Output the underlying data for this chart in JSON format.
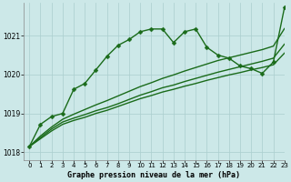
{
  "title": "Graphe pression niveau de la mer (hPa)",
  "background_color": "#cce8e8",
  "grid_color": "#aacece",
  "line_color": "#1a6b1a",
  "xlim": [
    -0.5,
    23
  ],
  "ylim": [
    1017.8,
    1021.85
  ],
  "yticks": [
    1018,
    1019,
    1020,
    1021
  ],
  "xticks": [
    0,
    1,
    2,
    3,
    4,
    5,
    6,
    7,
    8,
    9,
    10,
    11,
    12,
    13,
    14,
    15,
    16,
    17,
    18,
    19,
    20,
    21,
    22,
    23
  ],
  "series": [
    {
      "x": [
        0,
        1,
        2,
        3,
        4,
        5,
        6,
        7,
        8,
        9,
        10,
        11,
        12,
        13,
        14,
        15,
        16,
        17,
        18,
        19,
        20,
        21,
        22,
        23
      ],
      "y": [
        1018.15,
        1018.35,
        1018.55,
        1018.72,
        1018.82,
        1018.9,
        1019.0,
        1019.08,
        1019.18,
        1019.28,
        1019.38,
        1019.46,
        1019.55,
        1019.62,
        1019.7,
        1019.77,
        1019.85,
        1019.92,
        1019.99,
        1020.05,
        1020.12,
        1020.18,
        1020.25,
        1020.55
      ],
      "marker": null,
      "linestyle": "-",
      "linewidth": 1.0
    },
    {
      "x": [
        0,
        1,
        2,
        3,
        4,
        5,
        6,
        7,
        8,
        9,
        10,
        11,
        12,
        13,
        14,
        15,
        16,
        17,
        18,
        19,
        20,
        21,
        22,
        23
      ],
      "y": [
        1018.15,
        1018.38,
        1018.6,
        1018.78,
        1018.88,
        1018.97,
        1019.07,
        1019.15,
        1019.25,
        1019.36,
        1019.47,
        1019.56,
        1019.66,
        1019.73,
        1019.82,
        1019.9,
        1019.98,
        1020.06,
        1020.13,
        1020.2,
        1020.27,
        1020.34,
        1020.42,
        1020.78
      ],
      "marker": null,
      "linestyle": "-",
      "linewidth": 1.0
    },
    {
      "x": [
        0,
        1,
        2,
        3,
        4,
        5,
        6,
        7,
        8,
        9,
        10,
        11,
        12,
        13,
        14,
        15,
        16,
        17,
        18,
        19,
        20,
        21,
        22,
        23
      ],
      "y": [
        1018.15,
        1018.42,
        1018.65,
        1018.85,
        1018.98,
        1019.1,
        1019.22,
        1019.33,
        1019.45,
        1019.57,
        1019.69,
        1019.79,
        1019.9,
        1019.99,
        1020.09,
        1020.18,
        1020.27,
        1020.36,
        1020.43,
        1020.5,
        1020.57,
        1020.64,
        1020.73,
        1021.18
      ],
      "marker": null,
      "linestyle": "-",
      "linewidth": 1.0
    },
    {
      "x": [
        0,
        1,
        2,
        3,
        4,
        5,
        6,
        7,
        8,
        9,
        10,
        11,
        12,
        13,
        14,
        15,
        16,
        17,
        18,
        19,
        20,
        21,
        22,
        23
      ],
      "y": [
        1018.15,
        1018.72,
        1018.92,
        1019.0,
        1019.62,
        1019.77,
        1020.12,
        1020.47,
        1020.75,
        1020.9,
        1021.1,
        1021.17,
        1021.17,
        1020.82,
        1021.1,
        1021.17,
        1020.7,
        1020.5,
        1020.42,
        1020.22,
        1020.15,
        1020.03,
        1020.32,
        1021.72
      ],
      "marker": "D",
      "linestyle": "-",
      "linewidth": 1.0,
      "markersize": 2.5
    }
  ]
}
